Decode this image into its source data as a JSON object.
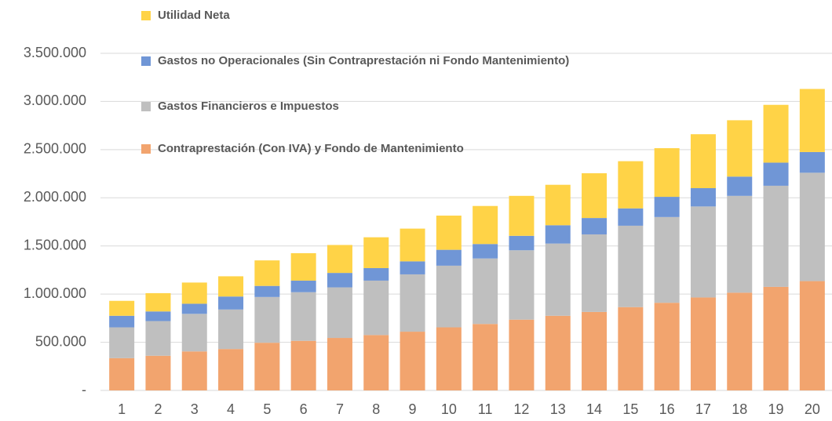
{
  "chart_data": {
    "type": "stacked_bar",
    "categories": [
      "1",
      "2",
      "3",
      "4",
      "5",
      "6",
      "7",
      "8",
      "9",
      "10",
      "11",
      "12",
      "13",
      "14",
      "15",
      "16",
      "17",
      "18",
      "19",
      "20"
    ],
    "series": [
      {
        "name": "Contraprestación (Con IVA) y Fondo de Mantenimiento",
        "color": "#f2a46e",
        "values": [
          335000,
          360000,
          405000,
          430000,
          495000,
          515000,
          545000,
          575000,
          610000,
          655000,
          690000,
          735000,
          775000,
          815000,
          865000,
          910000,
          965000,
          1015000,
          1075000,
          1135000
        ]
      },
      {
        "name": "Gastos Financieros e Impuestos",
        "color": "#bfbfbf",
        "values": [
          320000,
          360000,
          390000,
          410000,
          475000,
          505000,
          525000,
          565000,
          595000,
          640000,
          680000,
          720000,
          750000,
          805000,
          845000,
          890000,
          945000,
          1005000,
          1050000,
          1125000
        ]
      },
      {
        "name": "Gastos no Operacionales (Sin Contraprestación ni Fondo Mantenimiento)",
        "color": "#7096d6",
        "values": [
          120000,
          100000,
          105000,
          135000,
          115000,
          120000,
          150000,
          130000,
          135000,
          165000,
          150000,
          150000,
          190000,
          170000,
          180000,
          210000,
          190000,
          200000,
          240000,
          215000
        ]
      },
      {
        "name": "Utilidad Neta",
        "color": "#ffd347",
        "values": [
          155000,
          190000,
          220000,
          210000,
          265000,
          285000,
          290000,
          320000,
          340000,
          355000,
          395000,
          415000,
          420000,
          465000,
          490000,
          505000,
          560000,
          585000,
          600000,
          655000
        ]
      }
    ],
    "ylim": [
      0,
      3500000
    ],
    "yticks": [
      {
        "value": 0,
        "label": "-"
      },
      {
        "value": 500000,
        "label": "500.000"
      },
      {
        "value": 1000000,
        "label": "1.000.000"
      },
      {
        "value": 1500000,
        "label": "1.500.000"
      },
      {
        "value": 2000000,
        "label": "2.000.000"
      },
      {
        "value": 2500000,
        "label": "2.500.000"
      },
      {
        "value": 3000000,
        "label": "3.000.000"
      },
      {
        "value": 3500000,
        "label": "3.500.000"
      }
    ],
    "grid": true
  }
}
